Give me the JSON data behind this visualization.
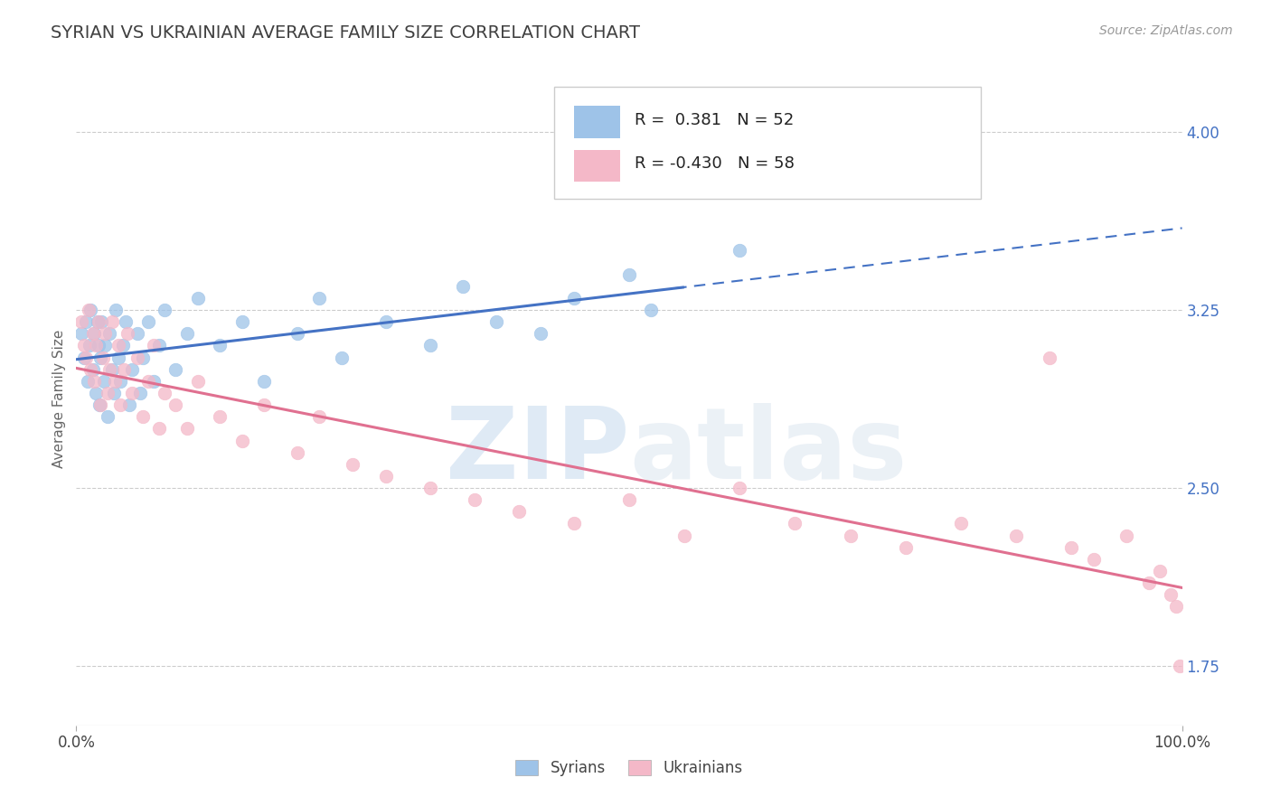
{
  "title": "SYRIAN VS UKRAINIAN AVERAGE FAMILY SIZE CORRELATION CHART",
  "source": "Source: ZipAtlas.com",
  "ylabel": "Average Family Size",
  "xlim": [
    0.0,
    1.0
  ],
  "ylim": [
    1.5,
    4.25
  ],
  "yticks": [
    1.75,
    2.5,
    3.25,
    4.0
  ],
  "xtick_positions": [
    0.0,
    1.0
  ],
  "xtick_labels": [
    "0.0%",
    "100.0%"
  ],
  "ytick_color": "#4472c4",
  "legend_r_syrian": "0.381",
  "legend_n_syrian": "52",
  "legend_r_ukrainian": "-0.430",
  "legend_n_ukrainian": "58",
  "syrian_color": "#9ec3e8",
  "ukrainian_color": "#f4b8c8",
  "trend_syrian_color": "#4472c4",
  "trend_ukrainian_color": "#e07090",
  "background_color": "#ffffff",
  "title_color": "#404040",
  "title_fontsize": 14,
  "syrian_scatter_x": [
    0.005,
    0.007,
    0.009,
    0.01,
    0.012,
    0.013,
    0.015,
    0.016,
    0.018,
    0.019,
    0.02,
    0.021,
    0.022,
    0.023,
    0.025,
    0.026,
    0.028,
    0.03,
    0.032,
    0.034,
    0.036,
    0.038,
    0.04,
    0.042,
    0.045,
    0.048,
    0.05,
    0.055,
    0.058,
    0.06,
    0.065,
    0.07,
    0.075,
    0.08,
    0.09,
    0.1,
    0.11,
    0.13,
    0.15,
    0.17,
    0.2,
    0.22,
    0.24,
    0.28,
    0.32,
    0.35,
    0.38,
    0.42,
    0.45,
    0.5,
    0.52,
    0.6
  ],
  "syrian_scatter_y": [
    3.15,
    3.05,
    3.2,
    2.95,
    3.1,
    3.25,
    3.0,
    3.15,
    2.9,
    3.2,
    3.1,
    2.85,
    3.05,
    3.2,
    2.95,
    3.1,
    2.8,
    3.15,
    3.0,
    2.9,
    3.25,
    3.05,
    2.95,
    3.1,
    3.2,
    2.85,
    3.0,
    3.15,
    2.9,
    3.05,
    3.2,
    2.95,
    3.1,
    3.25,
    3.0,
    3.15,
    3.3,
    3.1,
    3.2,
    2.95,
    3.15,
    3.3,
    3.05,
    3.2,
    3.1,
    3.35,
    3.2,
    3.15,
    3.3,
    3.4,
    3.25,
    3.5
  ],
  "ukrainian_scatter_x": [
    0.005,
    0.007,
    0.009,
    0.011,
    0.013,
    0.015,
    0.016,
    0.018,
    0.02,
    0.022,
    0.024,
    0.026,
    0.028,
    0.03,
    0.032,
    0.035,
    0.038,
    0.04,
    0.043,
    0.046,
    0.05,
    0.055,
    0.06,
    0.065,
    0.07,
    0.075,
    0.08,
    0.09,
    0.1,
    0.11,
    0.13,
    0.15,
    0.17,
    0.2,
    0.22,
    0.25,
    0.28,
    0.32,
    0.36,
    0.4,
    0.45,
    0.5,
    0.55,
    0.6,
    0.65,
    0.7,
    0.75,
    0.8,
    0.85,
    0.88,
    0.9,
    0.92,
    0.95,
    0.97,
    0.98,
    0.99,
    0.995,
    0.998
  ],
  "ukrainian_scatter_y": [
    3.2,
    3.1,
    3.05,
    3.25,
    3.0,
    3.15,
    2.95,
    3.1,
    3.2,
    2.85,
    3.05,
    3.15,
    2.9,
    3.0,
    3.2,
    2.95,
    3.1,
    2.85,
    3.0,
    3.15,
    2.9,
    3.05,
    2.8,
    2.95,
    3.1,
    2.75,
    2.9,
    2.85,
    2.75,
    2.95,
    2.8,
    2.7,
    2.85,
    2.65,
    2.8,
    2.6,
    2.55,
    2.5,
    2.45,
    2.4,
    2.35,
    2.45,
    2.3,
    2.5,
    2.35,
    2.3,
    2.25,
    2.35,
    2.3,
    3.05,
    2.25,
    2.2,
    2.3,
    2.1,
    2.15,
    2.05,
    2.0,
    1.75
  ]
}
